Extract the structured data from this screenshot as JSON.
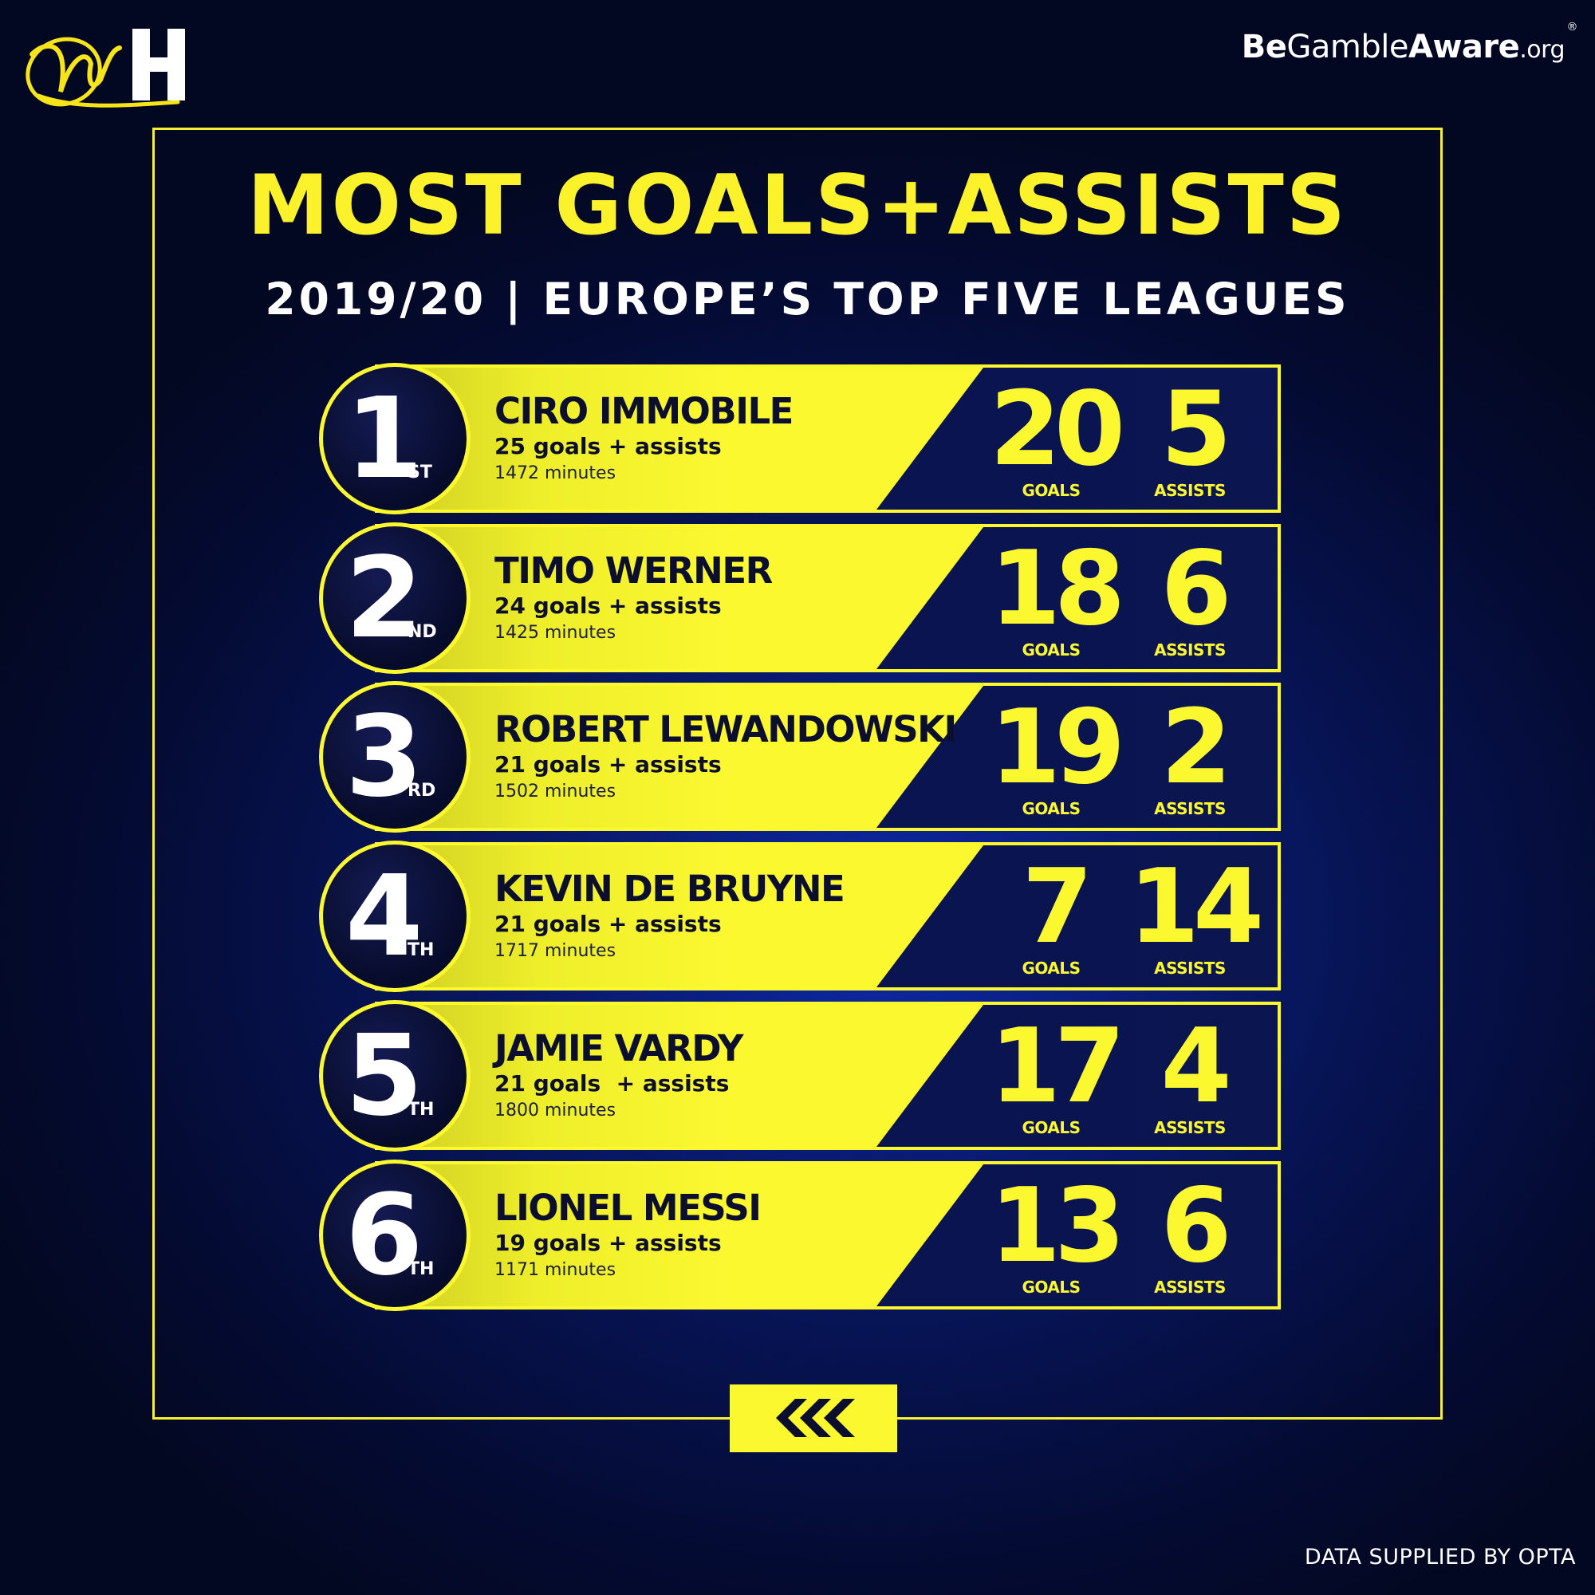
{
  "brand": {
    "logo_name": "William Hill",
    "gamble_aware": {
      "part1": "Be",
      "part2": "Gamble",
      "part3": "Aware",
      "part4": ".org",
      "reg": "®"
    }
  },
  "title": "MOST GOALS+ASSISTS",
  "subtitle": "2019/20 | EUROPE’S TOP FIVE LEAGUES",
  "goals_label": "GOALS",
  "assists_label": "ASSISTS",
  "players": [
    {
      "rank": "1",
      "suffix": "ST",
      "name": "CIRO IMMOBILE",
      "total_text": "25 goals + assists",
      "minutes_text": "1472 minutes",
      "goals": "20",
      "assists": "5"
    },
    {
      "rank": "2",
      "suffix": "ND",
      "name": "TIMO WERNER",
      "total_text": "24 goals + assists",
      "minutes_text": "1425 minutes",
      "goals": "18",
      "assists": "6"
    },
    {
      "rank": "3",
      "suffix": "RD",
      "name": "ROBERT LEWANDOWSKI",
      "total_text": "21 goals + assists",
      "minutes_text": "1502 minutes",
      "goals": "19",
      "assists": "2"
    },
    {
      "rank": "4",
      "suffix": "TH",
      "name": "KEVIN DE BRUYNE",
      "total_text": "21 goals + assists",
      "minutes_text": "1717 minutes",
      "goals": "7",
      "assists": "14"
    },
    {
      "rank": "5",
      "suffix": "TH",
      "name": "JAMIE VARDY",
      "total_text": "21 goals  + assists",
      "minutes_text": "1800 minutes",
      "goals": "17",
      "assists": "4"
    },
    {
      "rank": "6",
      "suffix": "TH",
      "name": "LIONEL MESSI",
      "total_text": "19 goals + assists",
      "minutes_text": "1171 minutes",
      "goals": "13",
      "assists": "6"
    }
  ],
  "footer": "DATA SUPPLIED BY OPTA",
  "colors": {
    "accent": "#fcf830",
    "background": "#071455",
    "dark_panel": "#0a1450"
  },
  "icons": {
    "back": "triple-chevron-left-icon"
  }
}
